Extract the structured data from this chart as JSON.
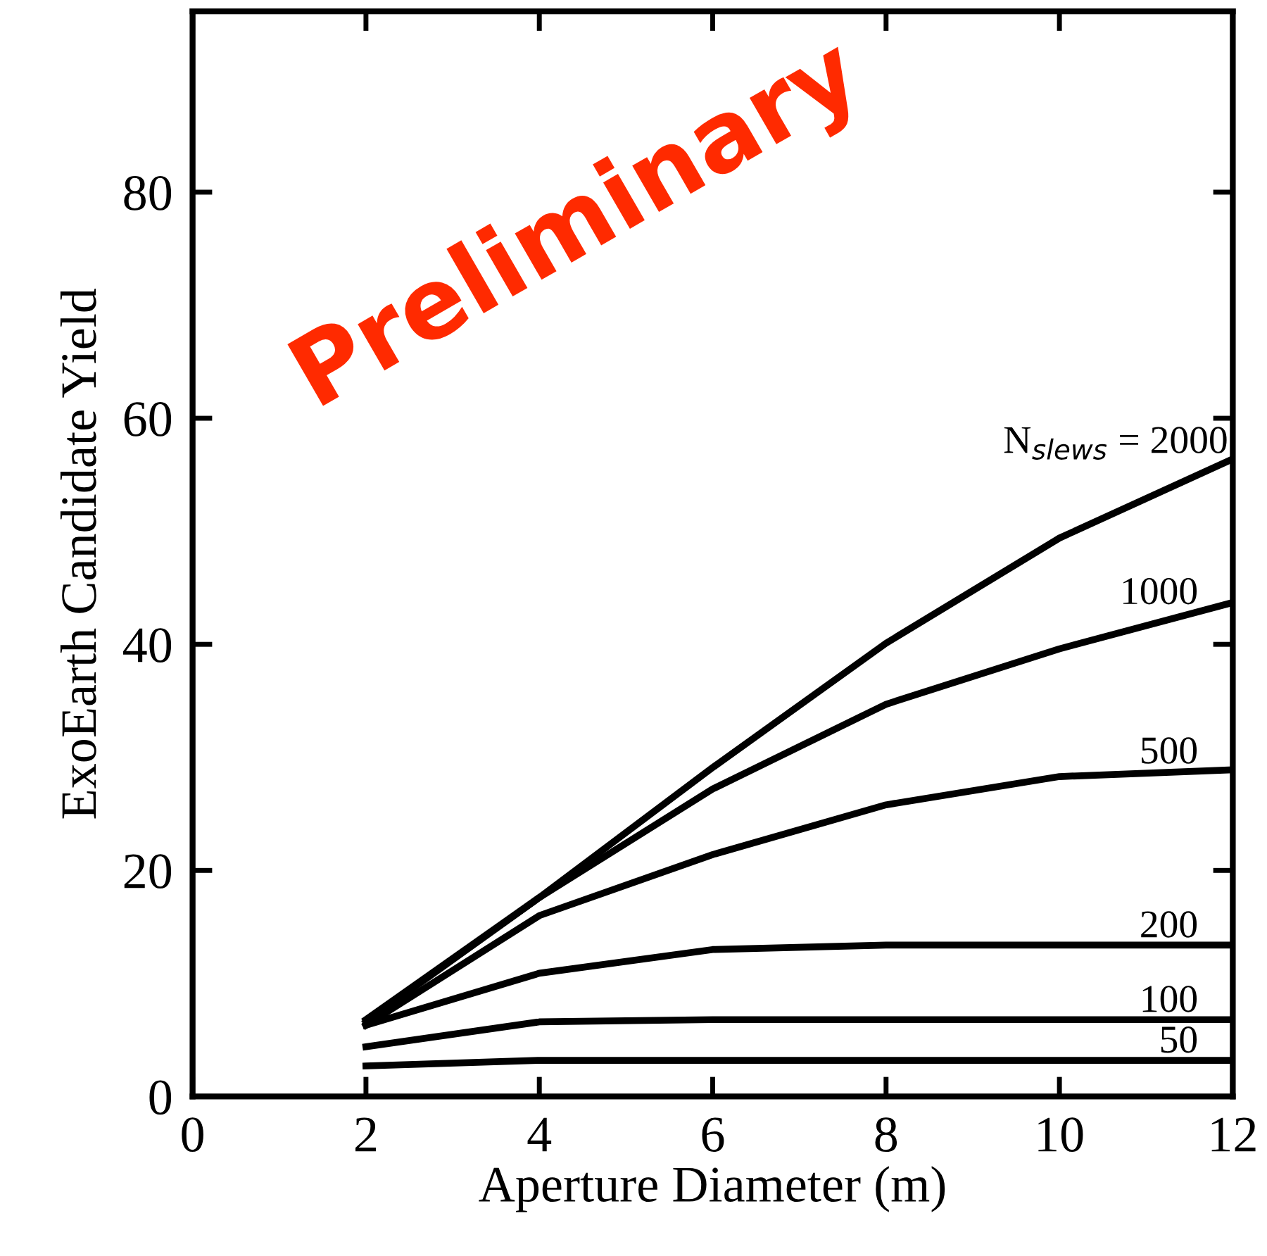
{
  "chart_data": {
    "type": "line",
    "xlabel": "Aperture Diameter (m)",
    "ylabel": "ExoEarth Candidate Yield",
    "x": [
      2,
      4,
      6,
      8,
      10,
      12
    ],
    "series": [
      {
        "name": "N$_{slews}$ = 2000",
        "color": "#000000",
        "values": [
          6.8,
          17.6,
          29.1,
          40.1,
          49.4,
          56.4
        ]
      },
      {
        "name": "1000",
        "color": "#000000",
        "values": [
          6.6,
          17.6,
          27.2,
          34.7,
          39.6,
          43.7
        ]
      },
      {
        "name": "500",
        "color": "#000000",
        "values": [
          6.3,
          16.0,
          21.4,
          25.8,
          28.3,
          28.9
        ]
      },
      {
        "name": "200",
        "color": "#000000",
        "values": [
          6.3,
          10.9,
          13.0,
          13.4,
          13.4,
          13.4
        ]
      },
      {
        "name": "100",
        "color": "#000000",
        "values": [
          4.4,
          6.6,
          6.8,
          6.8,
          6.8,
          6.8
        ]
      },
      {
        "name": "50",
        "color": "#000000",
        "values": [
          2.7,
          3.2,
          3.2,
          3.2,
          3.2,
          3.2
        ]
      }
    ],
    "annotations": [
      "Preliminary"
    ],
    "xlim": [
      0,
      12
    ],
    "xticks": [
      0,
      2,
      4,
      6,
      8,
      10,
      12
    ],
    "ylim": [
      0,
      96
    ],
    "yticks": [
      0,
      20,
      40,
      60,
      80
    ],
    "grid": false,
    "legend": "right",
    "marker": "none",
    "line_style": "solid"
  }
}
